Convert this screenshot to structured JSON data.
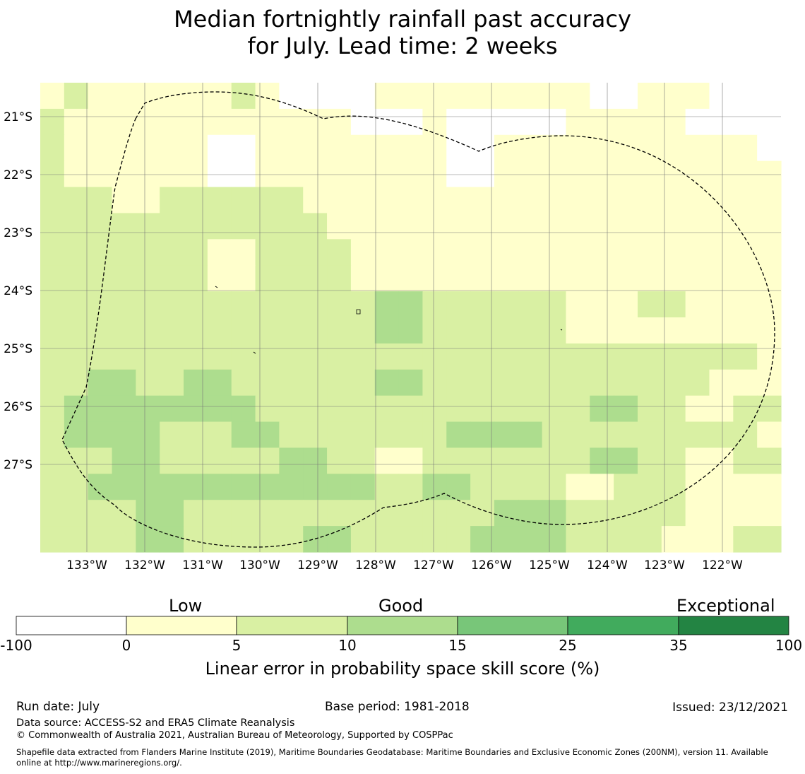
{
  "title_lines": [
    "Median fortnightly rainfall past accuracy",
    "for July. Lead time: 2 weeks"
  ],
  "map": {
    "lon_labels": [
      "133°W",
      "132°W",
      "131°W",
      "130°W",
      "129°W",
      "128°W",
      "127°W",
      "126°W",
      "125°W",
      "124°W",
      "123°W",
      "122°W"
    ],
    "lat_labels": [
      "21°S",
      "22°S",
      "23°S",
      "24°S",
      "25°S",
      "26°S",
      "27°S"
    ],
    "grid_lines": true,
    "boundary_style": "dashed black line (EEZ boundary)",
    "skill_grid": {
      "description": "Rows north to south, columns west to east; values are category indices 0 (-100 to 0) .. 3 (10 to 15)",
      "rows": [
        [
          1,
          2,
          1,
          1,
          1,
          1,
          1,
          1,
          2,
          1,
          0,
          0,
          0,
          0,
          1,
          1,
          1,
          1,
          1,
          1,
          1,
          1,
          1,
          0,
          0,
          1,
          1,
          1,
          0,
          0,
          0
        ],
        [
          2,
          1,
          1,
          1,
          1,
          1,
          1,
          1,
          1,
          1,
          1,
          1,
          1,
          0,
          0,
          0,
          1,
          0,
          0,
          0,
          0,
          0,
          1,
          1,
          1,
          1,
          1,
          0,
          0,
          0,
          0
        ],
        [
          2,
          1,
          1,
          1,
          1,
          1,
          1,
          0,
          0,
          1,
          1,
          1,
          1,
          1,
          1,
          1,
          1,
          0,
          0,
          1,
          1,
          1,
          1,
          1,
          1,
          1,
          1,
          1,
          1,
          1,
          0
        ],
        [
          2,
          1,
          1,
          1,
          1,
          1,
          1,
          0,
          0,
          1,
          1,
          1,
          1,
          1,
          1,
          1,
          1,
          0,
          0,
          1,
          1,
          1,
          1,
          1,
          1,
          1,
          1,
          1,
          1,
          1,
          1
        ],
        [
          2,
          2,
          2,
          1,
          1,
          2,
          2,
          2,
          2,
          2,
          2,
          1,
          1,
          1,
          1,
          1,
          1,
          1,
          1,
          1,
          1,
          1,
          1,
          1,
          1,
          1,
          1,
          1,
          1,
          1,
          1
        ],
        [
          2,
          2,
          2,
          2,
          2,
          2,
          2,
          2,
          2,
          2,
          2,
          2,
          1,
          1,
          1,
          1,
          1,
          1,
          1,
          1,
          1,
          1,
          1,
          1,
          1,
          1,
          1,
          1,
          1,
          1,
          1
        ],
        [
          2,
          2,
          2,
          2,
          2,
          2,
          2,
          1,
          1,
          2,
          2,
          2,
          2,
          1,
          1,
          1,
          1,
          1,
          1,
          1,
          1,
          1,
          1,
          1,
          1,
          1,
          1,
          1,
          1,
          1,
          1
        ],
        [
          2,
          2,
          2,
          2,
          2,
          2,
          2,
          1,
          1,
          2,
          2,
          2,
          2,
          1,
          1,
          1,
          1,
          1,
          1,
          1,
          1,
          1,
          1,
          1,
          1,
          1,
          1,
          1,
          1,
          1,
          1
        ],
        [
          2,
          2,
          2,
          2,
          2,
          2,
          2,
          2,
          2,
          2,
          2,
          2,
          2,
          2,
          3,
          3,
          2,
          2,
          2,
          2,
          2,
          2,
          1,
          1,
          1,
          2,
          2,
          1,
          1,
          1,
          1
        ],
        [
          2,
          2,
          2,
          2,
          2,
          2,
          2,
          2,
          2,
          2,
          2,
          2,
          2,
          2,
          3,
          3,
          2,
          2,
          2,
          2,
          2,
          2,
          1,
          1,
          1,
          1,
          1,
          1,
          1,
          1,
          1
        ],
        [
          2,
          2,
          2,
          2,
          2,
          2,
          2,
          2,
          2,
          2,
          2,
          2,
          2,
          2,
          2,
          2,
          2,
          2,
          2,
          2,
          2,
          2,
          2,
          2,
          2,
          2,
          2,
          2,
          2,
          2,
          1
        ],
        [
          2,
          2,
          3,
          3,
          2,
          2,
          3,
          3,
          2,
          2,
          2,
          2,
          2,
          2,
          3,
          3,
          2,
          2,
          2,
          2,
          2,
          2,
          2,
          2,
          2,
          2,
          2,
          2,
          1,
          1,
          1
        ],
        [
          2,
          3,
          3,
          3,
          3,
          3,
          3,
          3,
          3,
          2,
          2,
          2,
          2,
          2,
          2,
          2,
          2,
          2,
          2,
          2,
          2,
          2,
          2,
          3,
          3,
          2,
          2,
          1,
          1,
          2,
          2
        ],
        [
          2,
          3,
          3,
          3,
          3,
          2,
          2,
          2,
          3,
          3,
          2,
          2,
          2,
          2,
          2,
          2,
          2,
          3,
          3,
          3,
          3,
          2,
          2,
          2,
          2,
          2,
          2,
          2,
          2,
          2,
          1
        ],
        [
          2,
          2,
          2,
          3,
          3,
          2,
          2,
          2,
          2,
          2,
          3,
          3,
          2,
          2,
          1,
          1,
          2,
          2,
          2,
          2,
          2,
          2,
          2,
          3,
          3,
          2,
          2,
          1,
          1,
          2,
          2
        ],
        [
          2,
          2,
          3,
          3,
          3,
          3,
          3,
          3,
          3,
          3,
          3,
          3,
          3,
          3,
          2,
          2,
          3,
          3,
          2,
          2,
          2,
          2,
          1,
          1,
          2,
          2,
          2,
          1,
          1,
          1,
          1
        ],
        [
          2,
          2,
          2,
          2,
          3,
          3,
          2,
          2,
          2,
          2,
          2,
          2,
          2,
          2,
          2,
          2,
          2,
          2,
          2,
          3,
          3,
          3,
          2,
          2,
          2,
          2,
          2,
          1,
          1,
          1,
          1
        ],
        [
          2,
          2,
          2,
          2,
          3,
          3,
          2,
          2,
          2,
          2,
          2,
          3,
          3,
          2,
          2,
          2,
          2,
          2,
          3,
          3,
          3,
          3,
          2,
          2,
          2,
          2,
          1,
          1,
          1,
          2,
          2
        ]
      ]
    }
  },
  "legend": {
    "category_labels": [
      "Low",
      "Good",
      "Exceptional"
    ],
    "tick_labels": [
      "-100",
      "0",
      "5",
      "10",
      "15",
      "25",
      "35",
      "100"
    ],
    "colors": [
      "#ffffff",
      "#ffffcc",
      "#d9f0a3",
      "#addd8e",
      "#78c679",
      "#41ab5d",
      "#238443"
    ],
    "axis_label": "Linear error in probability space skill score (%)"
  },
  "footer": {
    "run_date": "Run date: July",
    "base_period": "Base period: 1981-2018",
    "issued": "Issued: 23/12/2021",
    "data_source": "Data source: ACCESS-S2 and ERA5 Climate Reanalysis",
    "copyright": "© Commonwealth of Australia 2021, Australian Bureau of Meteorology, Supported by COSPPac",
    "shapefile_line1": "Shapefile data extracted from Flanders Marine Institute (2019), Maritime Boundaries Geodatabase: Maritime Boundaries and Exclusive Economic Zones (200NM), version 11. Available",
    "shapefile_line2": "online at http://www.marineregions.org/."
  }
}
